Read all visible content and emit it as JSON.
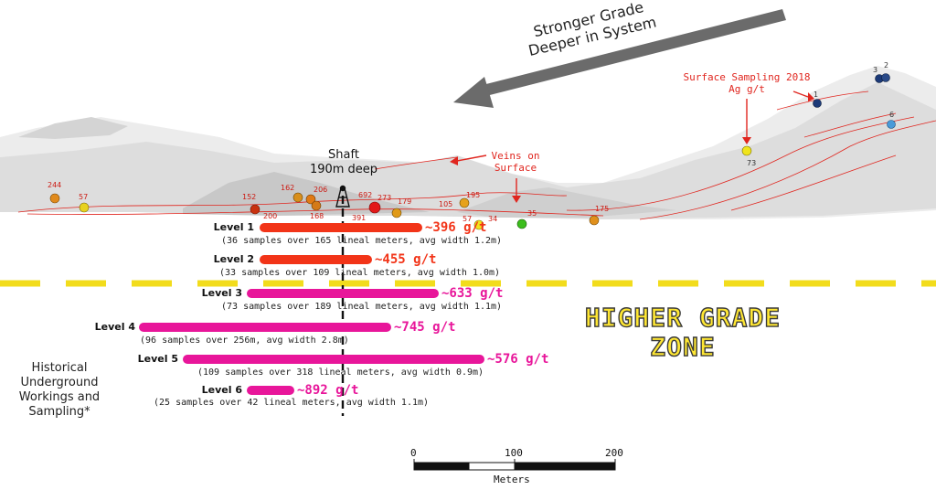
{
  "direction_note": {
    "line1": "Stronger Grade",
    "line2": "Deeper in System"
  },
  "surface_sampling": {
    "line1": "Surface Sampling 2018",
    "line2": "Ag g/t"
  },
  "veins_note": {
    "line1": "Veins on",
    "line2": "Surface"
  },
  "shaft": {
    "line1": "Shaft",
    "line2": "190m deep"
  },
  "zone_label": {
    "line1": "HIGHER GRADE",
    "line2": "ZONE"
  },
  "historical_note": {
    "line1": "Historical",
    "line2": "Underground",
    "line3": "Workings and",
    "line4": "Sampling*"
  },
  "levels": [
    {
      "label": "Level 1",
      "grade": "~396 g/t",
      "detail": "(36 samples over 165 lineal meters, avg width 1.2m)",
      "color": "#f23418"
    },
    {
      "label": "Level 2",
      "grade": "~455 g/t",
      "detail": "(33 samples over 109 lineal meters, avg width 1.0m)",
      "color": "#f23418"
    },
    {
      "label": "Level 3",
      "grade": "~633 g/t",
      "detail": "(73 samples over 189 lineal meters, avg width 1.1m)",
      "color": "#e8169a"
    },
    {
      "label": "Level 4",
      "grade": "~745 g/t",
      "detail": "(96 samples over 256m, avg width 2.8m)",
      "color": "#e8169a"
    },
    {
      "label": "Level 5",
      "grade": "~576 g/t",
      "detail": "(109 samples over 318 lineal meters, avg width 0.9m)",
      "color": "#e8169a"
    },
    {
      "label": "Level 6",
      "grade": "~892 g/t",
      "detail": "(25 samples over 42 lineal meters, avg width 1.1m)",
      "color": "#e8169a"
    }
  ],
  "samples": {
    "underground": [
      "244",
      "57",
      "152",
      "200",
      "162",
      "206",
      "168",
      "391",
      "692",
      "273",
      "179",
      "105",
      "195",
      "57",
      "34",
      "35",
      "175"
    ],
    "surface": [
      "1",
      "2",
      "3",
      "6",
      "73"
    ]
  },
  "scale_bar": {
    "ticks": [
      "0",
      "100",
      "200"
    ],
    "unit": "Meters"
  },
  "colors": {
    "shallow_bar": "#f23418",
    "deep_bar": "#e8169a",
    "zone_text": "#ffe733",
    "dashed_line": "#f2dc1c",
    "annotation": "#e0261f",
    "arrow": "#6b6b6b"
  }
}
